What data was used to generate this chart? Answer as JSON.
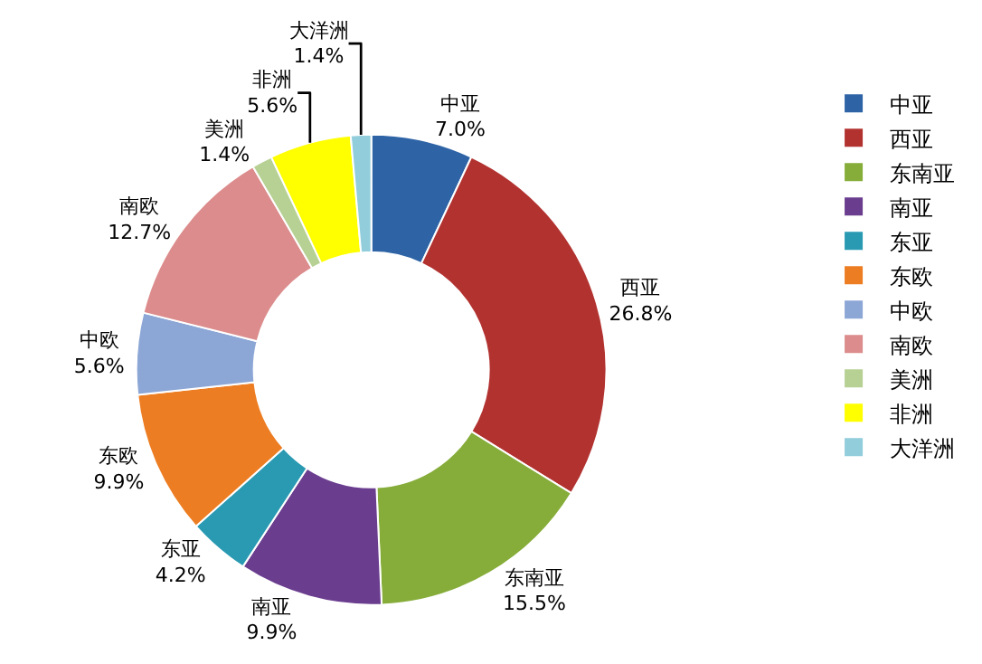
{
  "chart_data": {
    "type": "donut",
    "categories": [
      "中亚",
      "西亚",
      "东南亚",
      "南亚",
      "东亚",
      "东欧",
      "中欧",
      "南欧",
      "美洲",
      "非洲",
      "大洋洲"
    ],
    "values": [
      7.0,
      26.8,
      15.5,
      9.9,
      4.2,
      9.9,
      5.6,
      12.7,
      1.4,
      5.6,
      1.4
    ],
    "value_labels": [
      "7.0%",
      "26.8%",
      "15.5%",
      "9.9%",
      "4.2%",
      "9.9%",
      "5.6%",
      "12.7%",
      "1.4%",
      "5.6%",
      "1.4%"
    ],
    "colors": [
      "#2e64a6",
      "#b23230",
      "#86ad3a",
      "#6a3d8f",
      "#2a9ab3",
      "#ed7d22",
      "#8ca6d6",
      "#dc8c8c",
      "#b6d193",
      "#ffff00",
      "#92cddc"
    ],
    "legend": "right"
  }
}
